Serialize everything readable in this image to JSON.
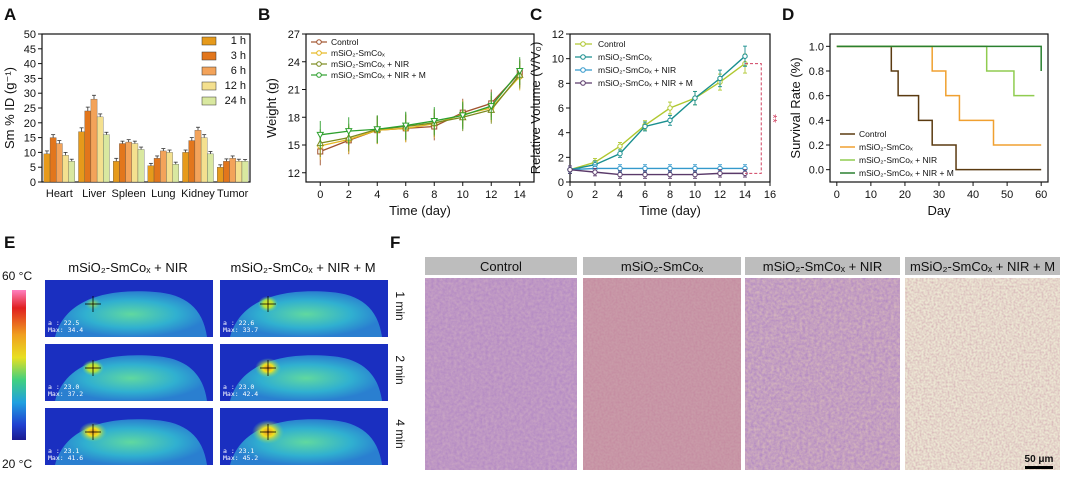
{
  "panels": {
    "a": "A",
    "b": "B",
    "c": "C",
    "d": "D",
    "e": "E",
    "f": "F"
  },
  "chart_data": [
    {
      "id": "A",
      "type": "bar",
      "ylabel": "Sm % ID (g⁻¹)",
      "ylim": [
        0,
        50
      ],
      "yticks": [
        0,
        5,
        10,
        15,
        20,
        25,
        30,
        35,
        40,
        45,
        50
      ],
      "categories": [
        "Heart",
        "Liver",
        "Spleen",
        "Lung",
        "Kidney",
        "Tumor"
      ],
      "series": [
        {
          "name": "1 h",
          "color": "#e69a1b",
          "values": [
            9.5,
            17,
            7,
            5.5,
            10,
            5
          ]
        },
        {
          "name": "3 h",
          "color": "#e2761c",
          "values": [
            15,
            24,
            13,
            8,
            14,
            7
          ]
        },
        {
          "name": "6 h",
          "color": "#f3a35a",
          "values": [
            13,
            28,
            13.5,
            10.5,
            17.5,
            8
          ]
        },
        {
          "name": "12 h",
          "color": "#f4e08f",
          "values": [
            9,
            22,
            13,
            10,
            15,
            7
          ]
        },
        {
          "name": "24 h",
          "color": "#d9e8a0",
          "values": [
            7,
            16,
            11,
            6,
            9.5,
            7
          ]
        }
      ],
      "errors": [
        [
          1,
          1.3,
          1,
          0.8,
          0.8,
          0.8
        ],
        [
          1,
          1.3,
          0.8,
          0.8,
          1,
          0.8
        ],
        [
          1,
          1.3,
          0.8,
          0.8,
          1,
          0.8
        ],
        [
          1,
          1,
          0.8,
          0.8,
          1,
          0.7
        ],
        [
          0.7,
          0.8,
          0.8,
          0.7,
          0.8,
          0.6
        ]
      ]
    },
    {
      "id": "B",
      "type": "line",
      "xlabel": "Time (day)",
      "ylabel": "Weight (g)",
      "xlim": [
        -1,
        15
      ],
      "ylim": [
        11,
        27
      ],
      "xticks": [
        0,
        2,
        4,
        6,
        8,
        10,
        12,
        14
      ],
      "yticks": [
        12,
        15,
        18,
        21,
        24,
        27
      ],
      "x": [
        0,
        2,
        4,
        6,
        8,
        10,
        12,
        14
      ],
      "series": [
        {
          "name": "Control",
          "color": "#a0522d",
          "marker": "square",
          "values": [
            14.3,
            15.5,
            16.6,
            16.8,
            17.0,
            18.5,
            19.5,
            22.8
          ]
        },
        {
          "name": "mSiO₂-SmCoₓ",
          "color": "#e6b820",
          "marker": "circle",
          "values": [
            14.9,
            15.6,
            16.6,
            16.8,
            17.3,
            18.3,
            19.0,
            22.4
          ]
        },
        {
          "name": "mSiO₂-SmCoₓ + NIR",
          "color": "#7a8a1e",
          "marker": "triangle",
          "values": [
            15.2,
            15.8,
            16.7,
            17.0,
            17.4,
            18.0,
            18.8,
            22.6
          ]
        },
        {
          "name": "mSiO₂-SmCoₓ + NIR + M",
          "color": "#2ea02e",
          "marker": "tridown",
          "values": [
            16.1,
            16.5,
            16.7,
            17.1,
            17.6,
            18.2,
            19.2,
            23.0
          ]
        }
      ],
      "error": 1.5
    },
    {
      "id": "C",
      "type": "line",
      "xlabel": "Time (day)",
      "ylabel": "Relative Volume (V/V₀)",
      "xlim": [
        0,
        16
      ],
      "ylim": [
        0,
        12
      ],
      "xticks": [
        0,
        2,
        4,
        6,
        8,
        10,
        12,
        14,
        16
      ],
      "yticks": [
        0,
        2,
        4,
        6,
        8,
        10,
        12
      ],
      "x": [
        0,
        2,
        4,
        6,
        8,
        10,
        12,
        14
      ],
      "series": [
        {
          "name": "Control",
          "color": "#b0c830",
          "values": [
            1.0,
            1.6,
            2.9,
            4.6,
            6.0,
            6.8,
            8.1,
            9.6
          ]
        },
        {
          "name": "mSiO₂-SmCoₓ",
          "color": "#1a8f8f",
          "values": [
            1.0,
            1.4,
            2.3,
            4.5,
            5.0,
            6.8,
            8.4,
            10.2
          ]
        },
        {
          "name": "mSiO₂-SmCoₓ + NIR",
          "color": "#3399cc",
          "values": [
            1.0,
            1.1,
            1.1,
            1.1,
            1.1,
            1.1,
            1.1,
            1.1
          ]
        },
        {
          "name": "mSiO₂-SmCoₓ + NIR + M",
          "color": "#5a3a6a",
          "values": [
            1.0,
            0.8,
            0.6,
            0.6,
            0.6,
            0.6,
            0.7,
            0.7
          ]
        }
      ],
      "annotation": "**"
    },
    {
      "id": "D",
      "type": "line",
      "xlabel": "Day",
      "ylabel": "Survival Rate (%)",
      "xlim": [
        -2,
        62
      ],
      "ylim": [
        -0.1,
        1.1
      ],
      "xticks": [
        0,
        10,
        20,
        30,
        40,
        50,
        60
      ],
      "yticks": [
        0.0,
        0.2,
        0.4,
        0.6,
        0.8,
        1.0
      ],
      "series": [
        {
          "name": "Control",
          "color": "#5a3a10",
          "steps": [
            [
              0,
              1
            ],
            [
              16,
              1
            ],
            [
              16,
              0.8
            ],
            [
              18,
              0.8
            ],
            [
              18,
              0.6
            ],
            [
              24,
              0.6
            ],
            [
              24,
              0.4
            ],
            [
              28,
              0.4
            ],
            [
              28,
              0.2
            ],
            [
              35,
              0.2
            ],
            [
              35,
              0
            ],
            [
              60,
              0
            ]
          ]
        },
        {
          "name": "mSiO₂-SmCoₓ",
          "color": "#f0a030",
          "steps": [
            [
              0,
              1
            ],
            [
              28,
              1
            ],
            [
              28,
              0.8
            ],
            [
              32,
              0.8
            ],
            [
              32,
              0.6
            ],
            [
              36,
              0.6
            ],
            [
              36,
              0.4
            ],
            [
              46,
              0.4
            ],
            [
              46,
              0.2
            ],
            [
              60,
              0.2
            ]
          ]
        },
        {
          "name": "mSiO₂-SmCoₓ + NIR",
          "color": "#90cc50",
          "steps": [
            [
              0,
              1
            ],
            [
              44,
              1
            ],
            [
              44,
              0.8
            ],
            [
              52,
              0.8
            ],
            [
              52,
              0.6
            ],
            [
              58,
              0.6
            ],
            [
              58,
              0.6
            ]
          ]
        },
        {
          "name": "mSiO₂-SmCoₓ + NIR + M",
          "color": "#2a8030",
          "steps": [
            [
              0,
              1
            ],
            [
              60,
              1
            ],
            [
              60,
              0.8
            ]
          ]
        }
      ]
    }
  ],
  "thermal": {
    "scale_top": "60 °C",
    "scale_bottom": "20 °C",
    "col1": "mSiO₂-SmCoₓ + NIR",
    "col2": "mSiO₂-SmCoₓ + NIR + M",
    "rows": [
      "1 min",
      "2 min",
      "4 min"
    ],
    "readouts": [
      [
        "a : 22.5\nMax: 34.4",
        "a : 22.6\nMax: 33.7"
      ],
      [
        "a : 23.0\nMax: 37.2",
        "a : 23.0\nMax: 42.4"
      ],
      [
        "a : 23.1\nMax: 41.6",
        "a : 23.1\nMax: 45.2"
      ]
    ]
  },
  "histology": {
    "headers": [
      "Control",
      "mSiO₂-SmCoₓ",
      "mSiO₂-SmCoₓ + NIR",
      "mSiO₂-SmCoₓ + NIR + M"
    ],
    "scalebar": "50 μm"
  }
}
